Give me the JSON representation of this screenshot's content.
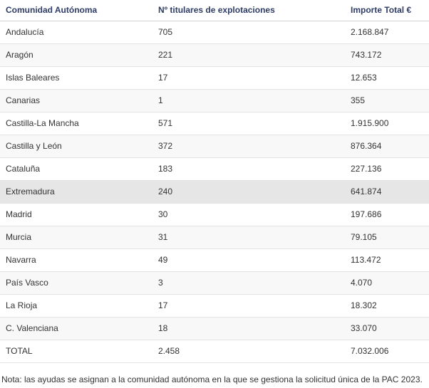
{
  "table": {
    "columns": [
      "Comunidad Autónoma",
      "Nº titulares de explotaciones",
      "Importe Total €"
    ],
    "rows": [
      [
        "Andalucía",
        "705",
        "2.168.847"
      ],
      [
        "Aragón",
        "221",
        "743.172"
      ],
      [
        "Islas Baleares",
        "17",
        "12.653"
      ],
      [
        "Canarias",
        "1",
        "355"
      ],
      [
        "Castilla-La Mancha",
        "571",
        "1.915.900"
      ],
      [
        "Castilla y León",
        "372",
        "876.364"
      ],
      [
        "Cataluña",
        "183",
        "227.136"
      ],
      [
        "Extremadura",
        "240",
        "641.874"
      ],
      [
        "Madrid",
        "30",
        "197.686"
      ],
      [
        "Murcia",
        "31",
        "79.105"
      ],
      [
        "Navarra",
        "49",
        "113.472"
      ],
      [
        "País Vasco",
        "3",
        "4.070"
      ],
      [
        "La Rioja",
        "17",
        "18.302"
      ],
      [
        "C. Valenciana",
        "18",
        "33.070"
      ],
      [
        "TOTAL",
        "2.458",
        "7.032.006"
      ]
    ]
  },
  "note": "Nota: las ayudas se asignan a la comunidad autónoma en la que se gestiona la solicitud única de la PAC 2023."
}
